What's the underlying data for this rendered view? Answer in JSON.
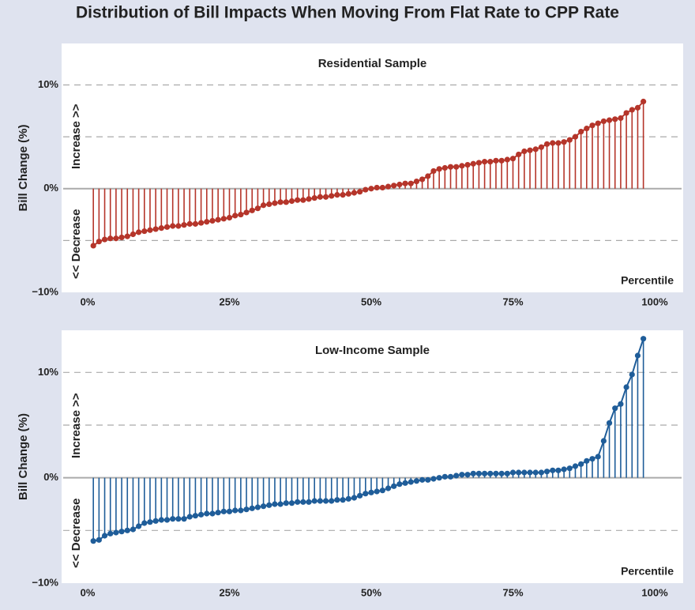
{
  "title": "Distribution of Bill Impacts When Moving From Flat Rate to CPP Rate",
  "chart_data": [
    {
      "type": "stem",
      "title": "Residential Sample",
      "ylabel": "Bill Change (%)",
      "xlabel": "Percentile",
      "annotations": [
        "Increase >>",
        "<< Decrease"
      ],
      "color": "#b5352a",
      "x": [
        1,
        2,
        3,
        4,
        5,
        6,
        7,
        8,
        9,
        10,
        11,
        12,
        13,
        14,
        15,
        16,
        17,
        18,
        19,
        20,
        21,
        22,
        23,
        24,
        25,
        26,
        27,
        28,
        29,
        30,
        31,
        32,
        33,
        34,
        35,
        36,
        37,
        38,
        39,
        40,
        41,
        42,
        43,
        44,
        45,
        46,
        47,
        48,
        49,
        50,
        51,
        52,
        53,
        54,
        55,
        56,
        57,
        58,
        59,
        60,
        61,
        62,
        63,
        64,
        65,
        66,
        67,
        68,
        69,
        70,
        71,
        72,
        73,
        74,
        75,
        76,
        77,
        78,
        79,
        80,
        81,
        82,
        83,
        84,
        85,
        86,
        87,
        88,
        89,
        90,
        91,
        92,
        93,
        94,
        95,
        96,
        97,
        98
      ],
      "values": [
        -5.5,
        -5.1,
        -4.9,
        -4.8,
        -4.8,
        -4.7,
        -4.6,
        -4.4,
        -4.2,
        -4.1,
        -4.0,
        -3.9,
        -3.8,
        -3.7,
        -3.6,
        -3.6,
        -3.5,
        -3.4,
        -3.4,
        -3.3,
        -3.2,
        -3.1,
        -3.0,
        -2.9,
        -2.8,
        -2.6,
        -2.5,
        -2.3,
        -2.1,
        -1.9,
        -1.6,
        -1.5,
        -1.4,
        -1.3,
        -1.3,
        -1.2,
        -1.1,
        -1.1,
        -1.0,
        -0.9,
        -0.8,
        -0.8,
        -0.7,
        -0.6,
        -0.6,
        -0.5,
        -0.4,
        -0.3,
        -0.1,
        0.0,
        0.1,
        0.1,
        0.2,
        0.3,
        0.4,
        0.5,
        0.5,
        0.7,
        0.9,
        1.2,
        1.7,
        1.9,
        2.0,
        2.1,
        2.1,
        2.2,
        2.3,
        2.4,
        2.5,
        2.6,
        2.6,
        2.7,
        2.7,
        2.8,
        2.9,
        3.3,
        3.6,
        3.7,
        3.8,
        4.0,
        4.3,
        4.4,
        4.4,
        4.5,
        4.7,
        5.0,
        5.5,
        5.8,
        6.1,
        6.3,
        6.5,
        6.6,
        6.7,
        6.8,
        7.3,
        7.6,
        7.8,
        8.4
      ],
      "xlim": [
        0,
        100
      ],
      "xticks": [
        {
          "value": 0,
          "label": "0%"
        },
        {
          "value": 25,
          "label": "25%"
        },
        {
          "value": 50,
          "label": "50%"
        },
        {
          "value": 75,
          "label": "75%"
        },
        {
          "value": 100,
          "label": "100%"
        }
      ],
      "ylim": [
        -10,
        14
      ],
      "yticks": [
        {
          "value": -10,
          "label": "−10%"
        },
        {
          "value": 0,
          "label": "0%"
        },
        {
          "value": 10,
          "label": "10%"
        }
      ],
      "yminor": [
        -5,
        5
      ],
      "grid": true
    },
    {
      "type": "stem",
      "title": "Low-Income Sample",
      "ylabel": "Bill Change (%)",
      "xlabel": "Percentile",
      "annotations": [
        "Increase >>",
        "<< Decrease"
      ],
      "color": "#1f5d99",
      "x": [
        1,
        2,
        3,
        4,
        5,
        6,
        7,
        8,
        9,
        10,
        11,
        12,
        13,
        14,
        15,
        16,
        17,
        18,
        19,
        20,
        21,
        22,
        23,
        24,
        25,
        26,
        27,
        28,
        29,
        30,
        31,
        32,
        33,
        34,
        35,
        36,
        37,
        38,
        39,
        40,
        41,
        42,
        43,
        44,
        45,
        46,
        47,
        48,
        49,
        50,
        51,
        52,
        53,
        54,
        55,
        56,
        57,
        58,
        59,
        60,
        61,
        62,
        63,
        64,
        65,
        66,
        67,
        68,
        69,
        70,
        71,
        72,
        73,
        74,
        75,
        76,
        77,
        78,
        79,
        80,
        81,
        82,
        83,
        84,
        85,
        86,
        87,
        88,
        89,
        90,
        91,
        92,
        93,
        94,
        95,
        96,
        97,
        98
      ],
      "values": [
        -6.0,
        -5.9,
        -5.5,
        -5.3,
        -5.2,
        -5.1,
        -5.0,
        -4.9,
        -4.6,
        -4.3,
        -4.2,
        -4.1,
        -4.0,
        -4.0,
        -3.9,
        -3.9,
        -3.9,
        -3.7,
        -3.6,
        -3.5,
        -3.4,
        -3.4,
        -3.3,
        -3.2,
        -3.2,
        -3.1,
        -3.1,
        -3.0,
        -2.9,
        -2.8,
        -2.7,
        -2.6,
        -2.5,
        -2.5,
        -2.4,
        -2.4,
        -2.3,
        -2.3,
        -2.3,
        -2.2,
        -2.2,
        -2.2,
        -2.2,
        -2.1,
        -2.1,
        -2.0,
        -1.9,
        -1.7,
        -1.5,
        -1.4,
        -1.3,
        -1.2,
        -1.0,
        -0.8,
        -0.6,
        -0.5,
        -0.4,
        -0.3,
        -0.2,
        -0.2,
        -0.1,
        0.0,
        0.1,
        0.1,
        0.2,
        0.3,
        0.3,
        0.4,
        0.4,
        0.4,
        0.4,
        0.4,
        0.4,
        0.4,
        0.5,
        0.5,
        0.5,
        0.5,
        0.5,
        0.5,
        0.6,
        0.7,
        0.7,
        0.8,
        0.9,
        1.1,
        1.3,
        1.6,
        1.8,
        2.0,
        3.5,
        5.2,
        6.6,
        7.0,
        8.6,
        9.8,
        11.6,
        13.2
      ],
      "xlim": [
        0,
        100
      ],
      "xticks": [
        {
          "value": 0,
          "label": "0%"
        },
        {
          "value": 25,
          "label": "25%"
        },
        {
          "value": 50,
          "label": "50%"
        },
        {
          "value": 75,
          "label": "75%"
        },
        {
          "value": 100,
          "label": "100%"
        }
      ],
      "ylim": [
        -10,
        14
      ],
      "yticks": [
        {
          "value": -10,
          "label": "−10%"
        },
        {
          "value": 0,
          "label": "0%"
        },
        {
          "value": 10,
          "label": "10%"
        }
      ],
      "yminor": [
        -5,
        5
      ],
      "grid": true
    }
  ]
}
